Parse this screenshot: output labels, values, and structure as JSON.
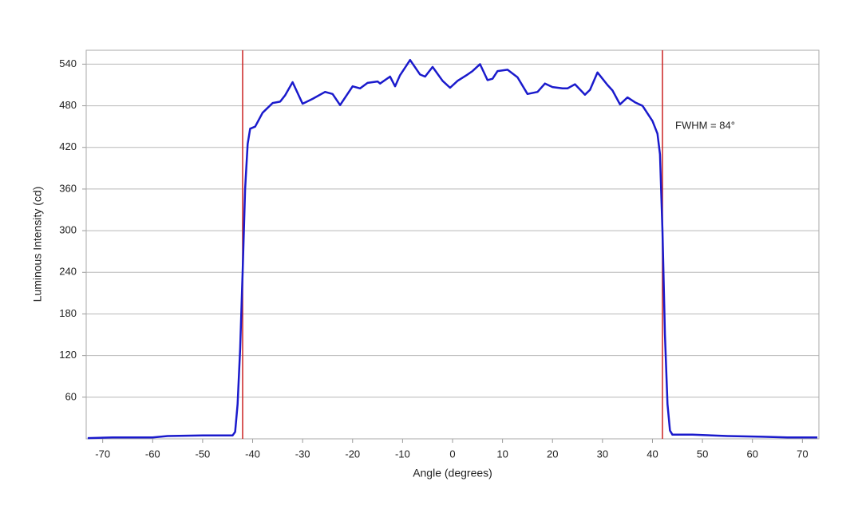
{
  "chart_data": {
    "type": "line",
    "xlabel": "Angle (degrees)",
    "ylabel": "Luminous Intensity (cd)",
    "annotation": "FWHM = 84°",
    "x": [
      -73,
      -68,
      -60,
      -57,
      -50,
      -44,
      -43.5,
      -43,
      -42.5,
      -42,
      -41.5,
      -41,
      -40.5,
      -39.5,
      -38,
      -36,
      -34.5,
      -33.5,
      -32,
      -30,
      -28,
      -25.5,
      -24,
      -22.5,
      -20,
      -18.5,
      -17,
      -15,
      -14.5,
      -12.5,
      -11.5,
      -10.5,
      -8.5,
      -6.5,
      -5.5,
      -4,
      -2,
      -0.5,
      1,
      3,
      4,
      5.5,
      7,
      8,
      9,
      11,
      13,
      15,
      17,
      18.5,
      20,
      22,
      23,
      24.5,
      26.5,
      27.5,
      29,
      31,
      32,
      33.5,
      35,
      36.5,
      38,
      40,
      41,
      41.5,
      42,
      42.5,
      43,
      43.5,
      44,
      48,
      55,
      62,
      67,
      73
    ],
    "series": [
      {
        "name": "Luminous Intensity",
        "color": "#1a1acc",
        "values": [
          1,
          2,
          2,
          4,
          5,
          5,
          10,
          50,
          130,
          240,
          360,
          425,
          447,
          450,
          470,
          484,
          486,
          495,
          514,
          483,
          490,
          500,
          497,
          481,
          508,
          505,
          513,
          515,
          512,
          522,
          508,
          524,
          546,
          525,
          522,
          536,
          516,
          506,
          516,
          525,
          530,
          540,
          517,
          519,
          530,
          532,
          521,
          497,
          500,
          512,
          507,
          505,
          505,
          511,
          496,
          503,
          528,
          510,
          502,
          482,
          492,
          485,
          480,
          458,
          440,
          410,
          300,
          150,
          50,
          12,
          6,
          6,
          4,
          3,
          2,
          2
        ]
      }
    ],
    "vlines": [
      -42,
      42
    ],
    "vline_color": "#cc2222",
    "xlim": [
      -73.3,
      73.3
    ],
    "ylim": [
      0,
      560
    ],
    "xticks": [
      -70,
      -60,
      -50,
      -40,
      -30,
      -20,
      -10,
      0,
      10,
      20,
      30,
      40,
      50,
      60,
      70
    ],
    "yticks": [
      60,
      120,
      180,
      240,
      300,
      360,
      420,
      480,
      540
    ],
    "grid": true
  }
}
